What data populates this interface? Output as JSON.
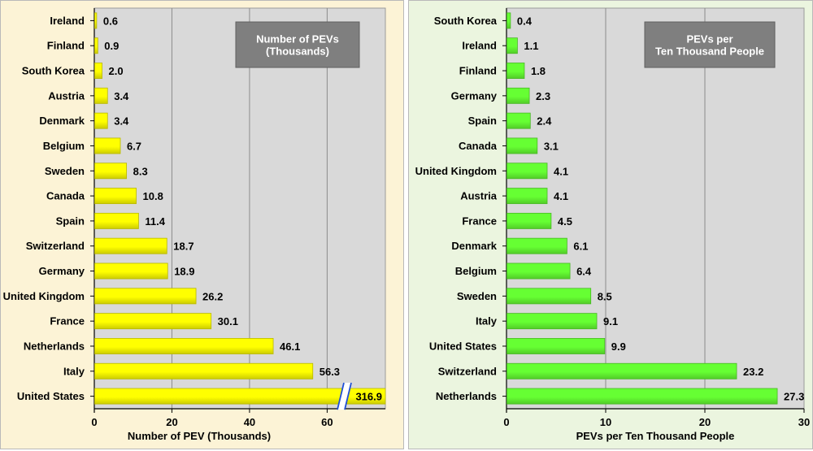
{
  "chart_data": [
    {
      "type": "bar",
      "orientation": "horizontal",
      "categories": [
        "Ireland",
        "Finland",
        "South Korea",
        "Austria",
        "Denmark",
        "Belgium",
        "Sweden",
        "Canada",
        "Spain",
        "Switzerland",
        "Germany",
        "United Kingdom",
        "France",
        "Netherlands",
        "Italy",
        "United States"
      ],
      "values": [
        0.6,
        0.9,
        2.0,
        3.4,
        3.4,
        6.7,
        8.3,
        10.8,
        11.4,
        18.7,
        18.9,
        26.2,
        30.1,
        46.1,
        56.3,
        316.9
      ],
      "value_labels": [
        "0.6",
        "0.9",
        "2.0",
        "3.4",
        "3.4",
        "6.7",
        "8.3",
        "10.8",
        "11.4",
        "18.7",
        "18.9",
        "26.2",
        "30.1",
        "46.1",
        "56.3",
        "316.9"
      ],
      "title": "Number of PEVs\n(Thousands)",
      "xlabel": "Number of PEV (Thousands)",
      "ylabel": "",
      "xlim": [
        0,
        75
      ],
      "xticks": [
        0,
        20,
        40,
        60
      ],
      "axis_break": true,
      "grid": true,
      "bar_color": "#ffff00",
      "panel_color": "#fcf3d6"
    },
    {
      "type": "bar",
      "orientation": "horizontal",
      "categories": [
        "South Korea",
        "Ireland",
        "Finland",
        "Germany",
        "Spain",
        "Canada",
        "United Kingdom",
        "Austria",
        "France",
        "Denmark",
        "Belgium",
        "Sweden",
        "Italy",
        "United States",
        "Switzerland",
        "Netherlands"
      ],
      "values": [
        0.4,
        1.1,
        1.8,
        2.3,
        2.4,
        3.1,
        4.1,
        4.1,
        4.5,
        6.1,
        6.4,
        8.5,
        9.1,
        9.9,
        23.2,
        27.3
      ],
      "value_labels": [
        "0.4",
        "1.1",
        "1.8",
        "2.3",
        "2.4",
        "3.1",
        "4.1",
        "4.1",
        "4.5",
        "6.1",
        "6.4",
        "8.5",
        "9.1",
        "9.9",
        "23.2",
        "27.3"
      ],
      "title": "PEVs per\nTen Thousand People",
      "xlabel": "PEVs per Ten Thousand People",
      "ylabel": "",
      "xlim": [
        0,
        30
      ],
      "xticks": [
        0,
        10,
        20,
        30
      ],
      "axis_break": false,
      "grid": true,
      "bar_color": "#66ff33",
      "panel_color": "#ebf5df"
    }
  ]
}
